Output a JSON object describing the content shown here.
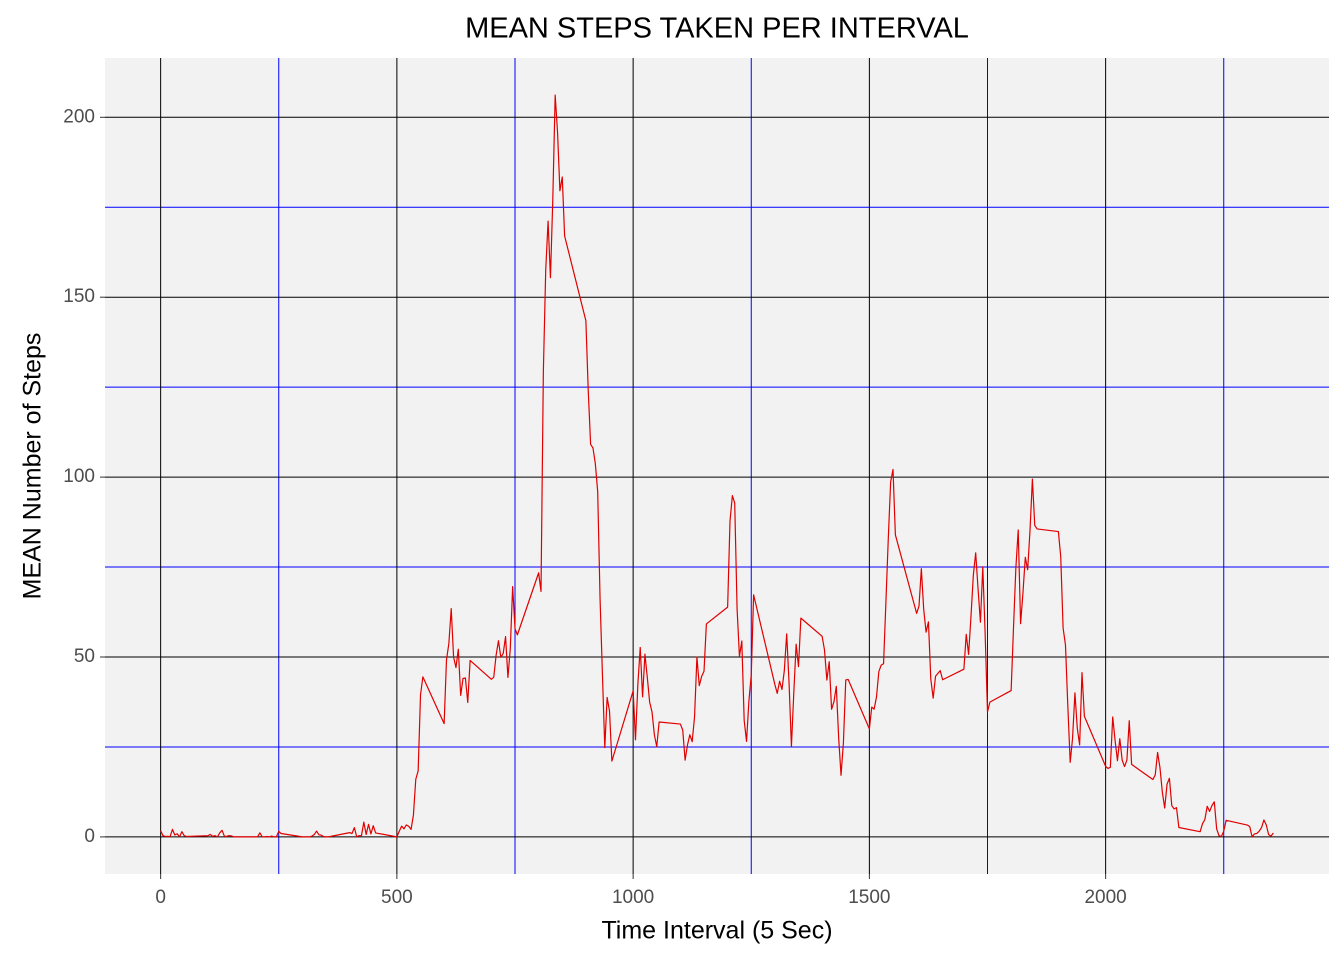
{
  "chart_data": {
    "type": "line",
    "title": "MEAN STEPS TAKEN PER INTERVAL",
    "x_label": "Time Interval (5 Sec)",
    "y_label": "MEAN Number of Steps",
    "xlim": [
      -117.75,
      2472.75
    ],
    "ylim": [
      -10.31,
      216.48
    ],
    "xticks": [
      0,
      500,
      1000,
      1500,
      2000
    ],
    "yticks": [
      0,
      50,
      100,
      150,
      200
    ],
    "xminor": [
      250,
      750,
      1250,
      1750,
      2250
    ],
    "yminor": [
      25,
      75,
      125,
      175
    ],
    "grid": true,
    "grid_color": "#000000",
    "minor_grid_color": "#0000ff",
    "series": [
      {
        "name": "mean steps",
        "color": "#e00000",
        "x": [
          0,
          5,
          10,
          15,
          20,
          25,
          30,
          35,
          40,
          45,
          50,
          55,
          100,
          105,
          110,
          115,
          120,
          125,
          130,
          135,
          140,
          145,
          150,
          155,
          200,
          205,
          210,
          215,
          220,
          225,
          230,
          235,
          240,
          245,
          250,
          255,
          300,
          305,
          310,
          315,
          320,
          325,
          330,
          335,
          340,
          345,
          350,
          355,
          400,
          405,
          410,
          415,
          420,
          425,
          430,
          435,
          440,
          445,
          450,
          455,
          500,
          505,
          510,
          515,
          520,
          525,
          530,
          535,
          540,
          545,
          550,
          555,
          600,
          605,
          610,
          615,
          620,
          625,
          630,
          635,
          640,
          645,
          650,
          655,
          700,
          705,
          710,
          715,
          720,
          725,
          730,
          735,
          740,
          745,
          750,
          755,
          800,
          805,
          810,
          815,
          820,
          825,
          830,
          835,
          840,
          845,
          850,
          855,
          900,
          905,
          910,
          915,
          920,
          925,
          930,
          935,
          940,
          945,
          950,
          955,
          1000,
          1005,
          1010,
          1015,
          1020,
          1025,
          1030,
          1035,
          1040,
          1045,
          1050,
          1055,
          1100,
          1105,
          1110,
          1115,
          1120,
          1125,
          1130,
          1135,
          1140,
          1145,
          1150,
          1155,
          1200,
          1205,
          1210,
          1215,
          1220,
          1225,
          1230,
          1235,
          1240,
          1245,
          1250,
          1255,
          1300,
          1305,
          1310,
          1315,
          1320,
          1325,
          1330,
          1335,
          1340,
          1345,
          1350,
          1355,
          1400,
          1405,
          1410,
          1415,
          1420,
          1425,
          1430,
          1435,
          1440,
          1445,
          1450,
          1455,
          1500,
          1505,
          1510,
          1515,
          1520,
          1525,
          1530,
          1535,
          1540,
          1545,
          1550,
          1555,
          1600,
          1605,
          1610,
          1615,
          1620,
          1625,
          1630,
          1635,
          1640,
          1645,
          1650,
          1655,
          1700,
          1705,
          1710,
          1715,
          1720,
          1725,
          1730,
          1735,
          1740,
          1745,
          1750,
          1755,
          1800,
          1805,
          1810,
          1815,
          1820,
          1825,
          1830,
          1835,
          1840,
          1845,
          1850,
          1855,
          1900,
          1905,
          1910,
          1915,
          1920,
          1925,
          1930,
          1935,
          1940,
          1945,
          1950,
          1955,
          2000,
          2005,
          2010,
          2015,
          2020,
          2025,
          2030,
          2035,
          2040,
          2045,
          2050,
          2055,
          2100,
          2105,
          2110,
          2115,
          2120,
          2125,
          2130,
          2135,
          2140,
          2145,
          2150,
          2155,
          2200,
          2205,
          2210,
          2215,
          2220,
          2225,
          2230,
          2235,
          2240,
          2245,
          2250,
          2255,
          2300,
          2305,
          2310,
          2315,
          2320,
          2325,
          2330,
          2335,
          2340,
          2345,
          2350,
          2355
        ],
        "values": [
          1.72,
          0.34,
          0.13,
          0.15,
          0.08,
          2.09,
          0.53,
          0.87,
          0,
          1.47,
          0.3,
          0.13,
          0.32,
          0.68,
          0.15,
          0.34,
          0,
          1.11,
          1.83,
          0.17,
          0.17,
          0.38,
          0.26,
          0,
          0,
          0,
          1.13,
          0,
          0,
          0.13,
          0,
          0.23,
          0,
          0,
          1.55,
          0.94,
          0,
          0,
          0,
          0,
          0.21,
          0.62,
          1.62,
          0.58,
          0.49,
          0.08,
          0,
          0,
          1.19,
          0.94,
          2.57,
          0,
          0.34,
          0.36,
          4.11,
          0.66,
          3.49,
          0.83,
          3.11,
          1.11,
          0,
          1.57,
          3,
          2.25,
          3.32,
          2.96,
          2.09,
          6.06,
          16.02,
          18.34,
          39.45,
          44.49,
          31.49,
          49.26,
          53.77,
          63.45,
          49.96,
          47.08,
          52.15,
          39.34,
          44.02,
          44.17,
          37.36,
          49.04,
          43.81,
          44.38,
          50.51,
          54.51,
          49.92,
          50.98,
          55.68,
          44.32,
          52.26,
          69.55,
          57.85,
          56.15,
          73.38,
          68.21,
          129.43,
          157.53,
          171.15,
          155.4,
          177.3,
          206.17,
          195.92,
          179.57,
          183.4,
          167.02,
          143.45,
          124.04,
          109.11,
          108.11,
          103.72,
          95.96,
          66.21,
          45.23,
          24.79,
          38.75,
          34.98,
          21.06,
          40.57,
          26.98,
          42.42,
          52.66,
          38.92,
          50.79,
          44.28,
          37.42,
          34.7,
          28.34,
          25.09,
          31.94,
          31.36,
          29.68,
          21.32,
          25.55,
          28.38,
          26.47,
          33.43,
          49.98,
          42.04,
          44.6,
          46.04,
          59.19,
          63.87,
          87.7,
          94.85,
          92.77,
          63.4,
          50.17,
          54.47,
          32.42,
          26.53,
          37.74,
          45.06,
          67.28,
          42.34,
          39.89,
          43.26,
          40.98,
          46.25,
          56.43,
          42.75,
          25.13,
          39.96,
          53.55,
          47.32,
          60.81,
          55.75,
          51.96,
          43.58,
          48.7,
          35.47,
          37.55,
          41.85,
          27.51,
          17.11,
          26.08,
          43.62,
          43.77,
          30.02,
          36.08,
          35.49,
          38.85,
          45.96,
          47.75,
          48.13,
          65.32,
          82.91,
          98.66,
          102.11,
          83.96,
          62.13,
          64.13,
          74.55,
          63.17,
          56.91,
          59.77,
          43.87,
          38.57,
          44.66,
          45.45,
          46.21,
          43.68,
          46.62,
          56.3,
          50.72,
          61.23,
          72.72,
          78.94,
          68.94,
          59.66,
          75.09,
          56.51,
          34.77,
          37.45,
          40.68,
          58.02,
          74.7,
          85.32,
          59.26,
          67.77,
          77.7,
          74.25,
          85.34,
          99.45,
          86.58,
          85.6,
          84.87,
          77.83,
          58.04,
          53.36,
          36.32,
          20.72,
          27.4,
          40.02,
          30.21,
          25.55,
          45.66,
          33.53,
          19.62,
          19.02,
          19.34,
          33.34,
          26.81,
          21.17,
          27.3,
          21.34,
          19.55,
          21.32,
          32.3,
          20.15,
          15.94,
          17.23,
          23.45,
          19.25,
          12.45,
          8.02,
          14.66,
          16.3,
          8.68,
          7.79,
          8.13,
          2.62,
          1.45,
          3.68,
          4.81,
          8.51,
          7.08,
          8.7,
          9.75,
          2.21,
          0.32,
          0.11,
          1.6,
          4.6,
          3.3,
          2.85,
          0,
          0.83,
          0.96,
          1.58,
          2.6,
          4.7,
          3.3,
          0.64,
          0.23,
          1.08
        ]
      }
    ]
  }
}
